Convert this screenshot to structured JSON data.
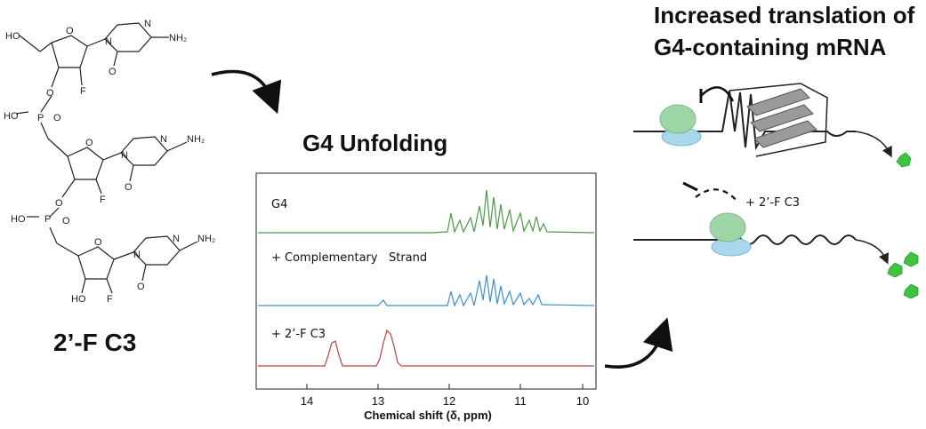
{
  "molecule": {
    "name": "2’-F C3",
    "atoms": {
      "ho_top": "HO",
      "nh2": "NH₂",
      "n": "N",
      "o": "O",
      "f": "F",
      "p": "P",
      "ho": "HO",
      "ho_bottom": "HO"
    }
  },
  "nmr": {
    "title": "G4 Unfolding",
    "traces": [
      {
        "label": "G4",
        "color": "#4a9a4a"
      },
      {
        "label": "+ Complementary   Strand",
        "color": "#3a8fd0"
      },
      {
        "label": "+ 2’-F C3",
        "color": "#c04040"
      }
    ],
    "x_ticks": [
      "14",
      "13",
      "12",
      "11",
      "10"
    ],
    "x_label": "Chemical shift (δ, ppm)"
  },
  "translation": {
    "title_line1": "Increased translation of",
    "title_line2": "G4-containing mRNA",
    "ligand_label": "+ 2’-F C3"
  },
  "colors": {
    "ribosome_large": "#9fd6a8",
    "ribosome_small": "#a8d8ec",
    "protein": "#3ec43e"
  }
}
